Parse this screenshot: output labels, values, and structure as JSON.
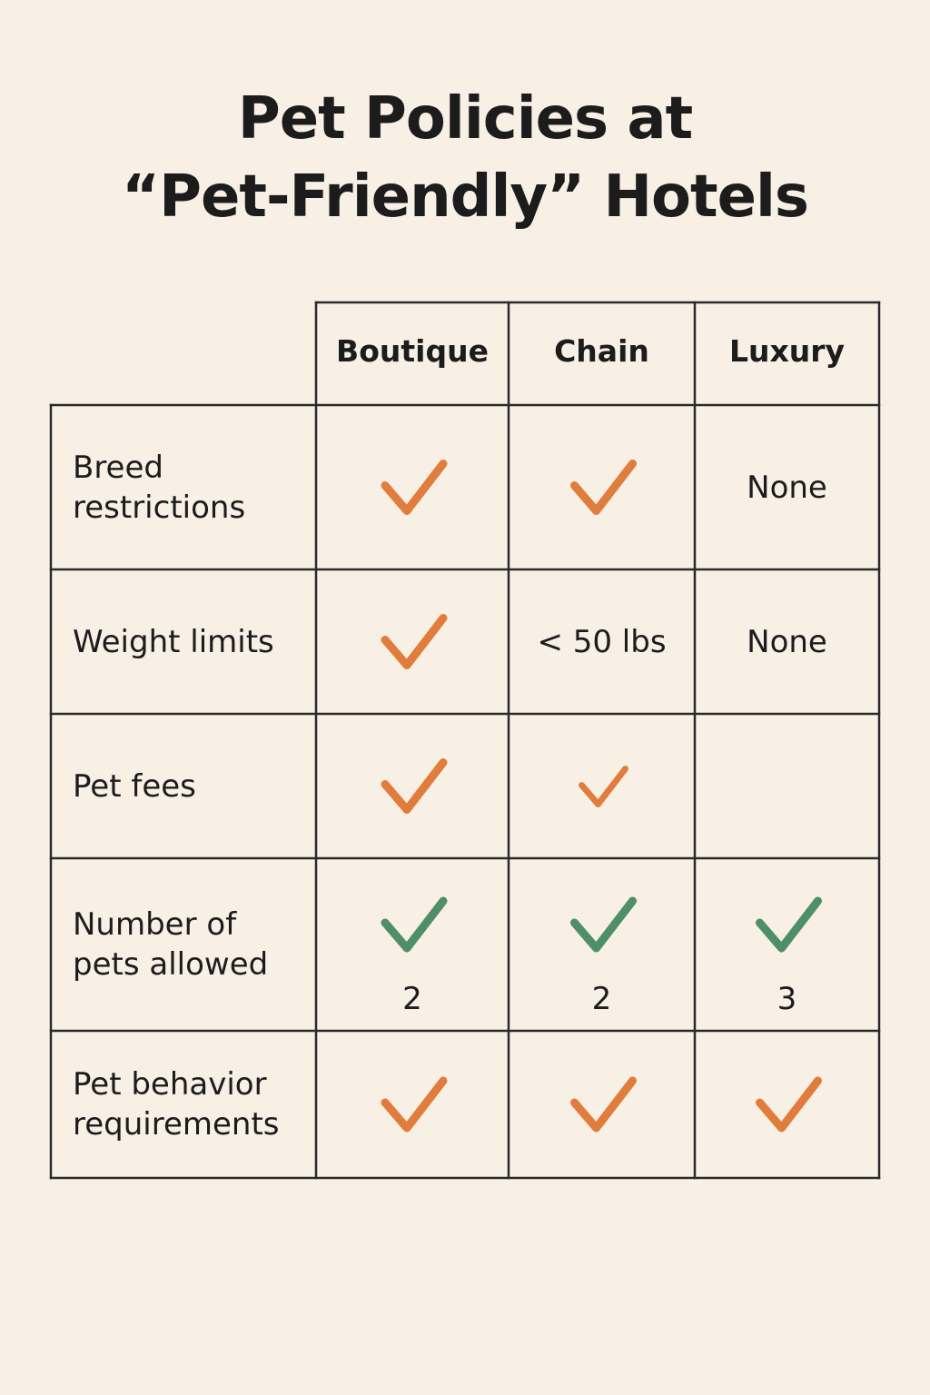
{
  "chart_data": {
    "type": "table",
    "title_lines": [
      "Pet Policies at",
      "“Pet-Friendly” Hotels"
    ],
    "columns": [
      "Boutique",
      "Chain",
      "Luxury"
    ],
    "rows": [
      {
        "label": "Breed restrictions",
        "cells": [
          {
            "mark": "check",
            "color": "#e07d3c",
            "text": ""
          },
          {
            "mark": "check",
            "color": "#e07d3c",
            "text": ""
          },
          {
            "mark": "none",
            "text": "None"
          }
        ]
      },
      {
        "label": "Weight limits",
        "cells": [
          {
            "mark": "check",
            "color": "#e07d3c",
            "text": ""
          },
          {
            "mark": "none",
            "text": "< 50 lbs"
          },
          {
            "mark": "none",
            "text": "None"
          }
        ]
      },
      {
        "label": "Pet fees",
        "cells": [
          {
            "mark": "check",
            "color": "#e07d3c",
            "text": ""
          },
          {
            "mark": "check-small",
            "color": "#e07d3c",
            "text": ""
          },
          {
            "mark": "none",
            "text": ""
          }
        ]
      },
      {
        "label": "Number of pets allowed",
        "cells": [
          {
            "mark": "check",
            "color": "#4f8f68",
            "text": "2"
          },
          {
            "mark": "check",
            "color": "#4f8f68",
            "text": "2"
          },
          {
            "mark": "check",
            "color": "#4f8f68",
            "text": "3"
          }
        ]
      },
      {
        "label": "Pet behavior requirements",
        "cells": [
          {
            "mark": "check",
            "color": "#e07d3c",
            "text": ""
          },
          {
            "mark": "check",
            "color": "#e07d3c",
            "text": ""
          },
          {
            "mark": "check",
            "color": "#e07d3c",
            "text": ""
          }
        ]
      }
    ],
    "colors": {
      "background": "#f8efe5",
      "grid_line": "#2a2a2a",
      "check_orange": "#e07d3c",
      "check_green": "#4f8f68",
      "text": "#1c1c1c"
    },
    "icons": [
      "check-icon"
    ]
  }
}
